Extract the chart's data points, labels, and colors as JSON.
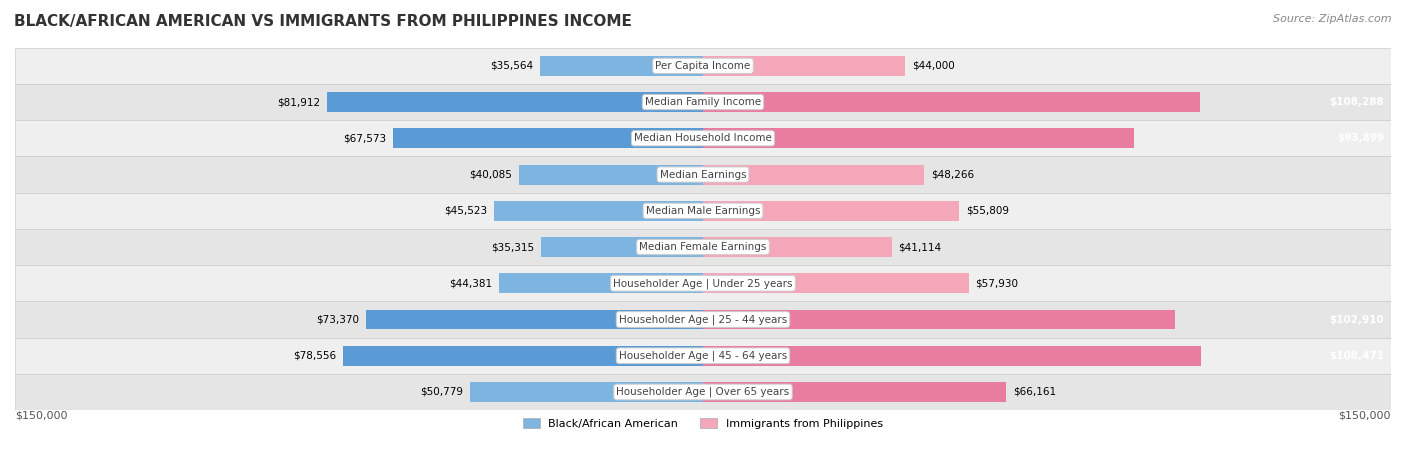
{
  "title": "BLACK/AFRICAN AMERICAN VS IMMIGRANTS FROM PHILIPPINES INCOME",
  "source": "Source: ZipAtlas.com",
  "categories": [
    "Per Capita Income",
    "Median Family Income",
    "Median Household Income",
    "Median Earnings",
    "Median Male Earnings",
    "Median Female Earnings",
    "Householder Age | Under 25 years",
    "Householder Age | 25 - 44 years",
    "Householder Age | 45 - 64 years",
    "Householder Age | Over 65 years"
  ],
  "black_values": [
    35564,
    81912,
    67573,
    40085,
    45523,
    35315,
    44381,
    73370,
    78556,
    50779
  ],
  "phil_values": [
    44000,
    108288,
    93899,
    48266,
    55809,
    41114,
    57930,
    102910,
    108471,
    66161
  ],
  "black_labels": [
    "$35,564",
    "$81,912",
    "$67,573",
    "$40,085",
    "$45,523",
    "$35,315",
    "$44,381",
    "$73,370",
    "$78,556",
    "$50,779"
  ],
  "phil_labels": [
    "$44,000",
    "$108,288",
    "$93,899",
    "$48,266",
    "$55,809",
    "$41,114",
    "$57,930",
    "$102,910",
    "$108,471",
    "$66,161"
  ],
  "max_value": 150000,
  "blue_color": "#7EB5E0",
  "blue_dark_color": "#5B9BD5",
  "pink_color": "#F4A7B9",
  "pink_dark_color": "#E87DA0",
  "bg_color": "#F5F5F5",
  "row_bg": "#EBEBEB",
  "legend_blue": "Black/African American",
  "legend_pink": "Immigrants from Philippines"
}
